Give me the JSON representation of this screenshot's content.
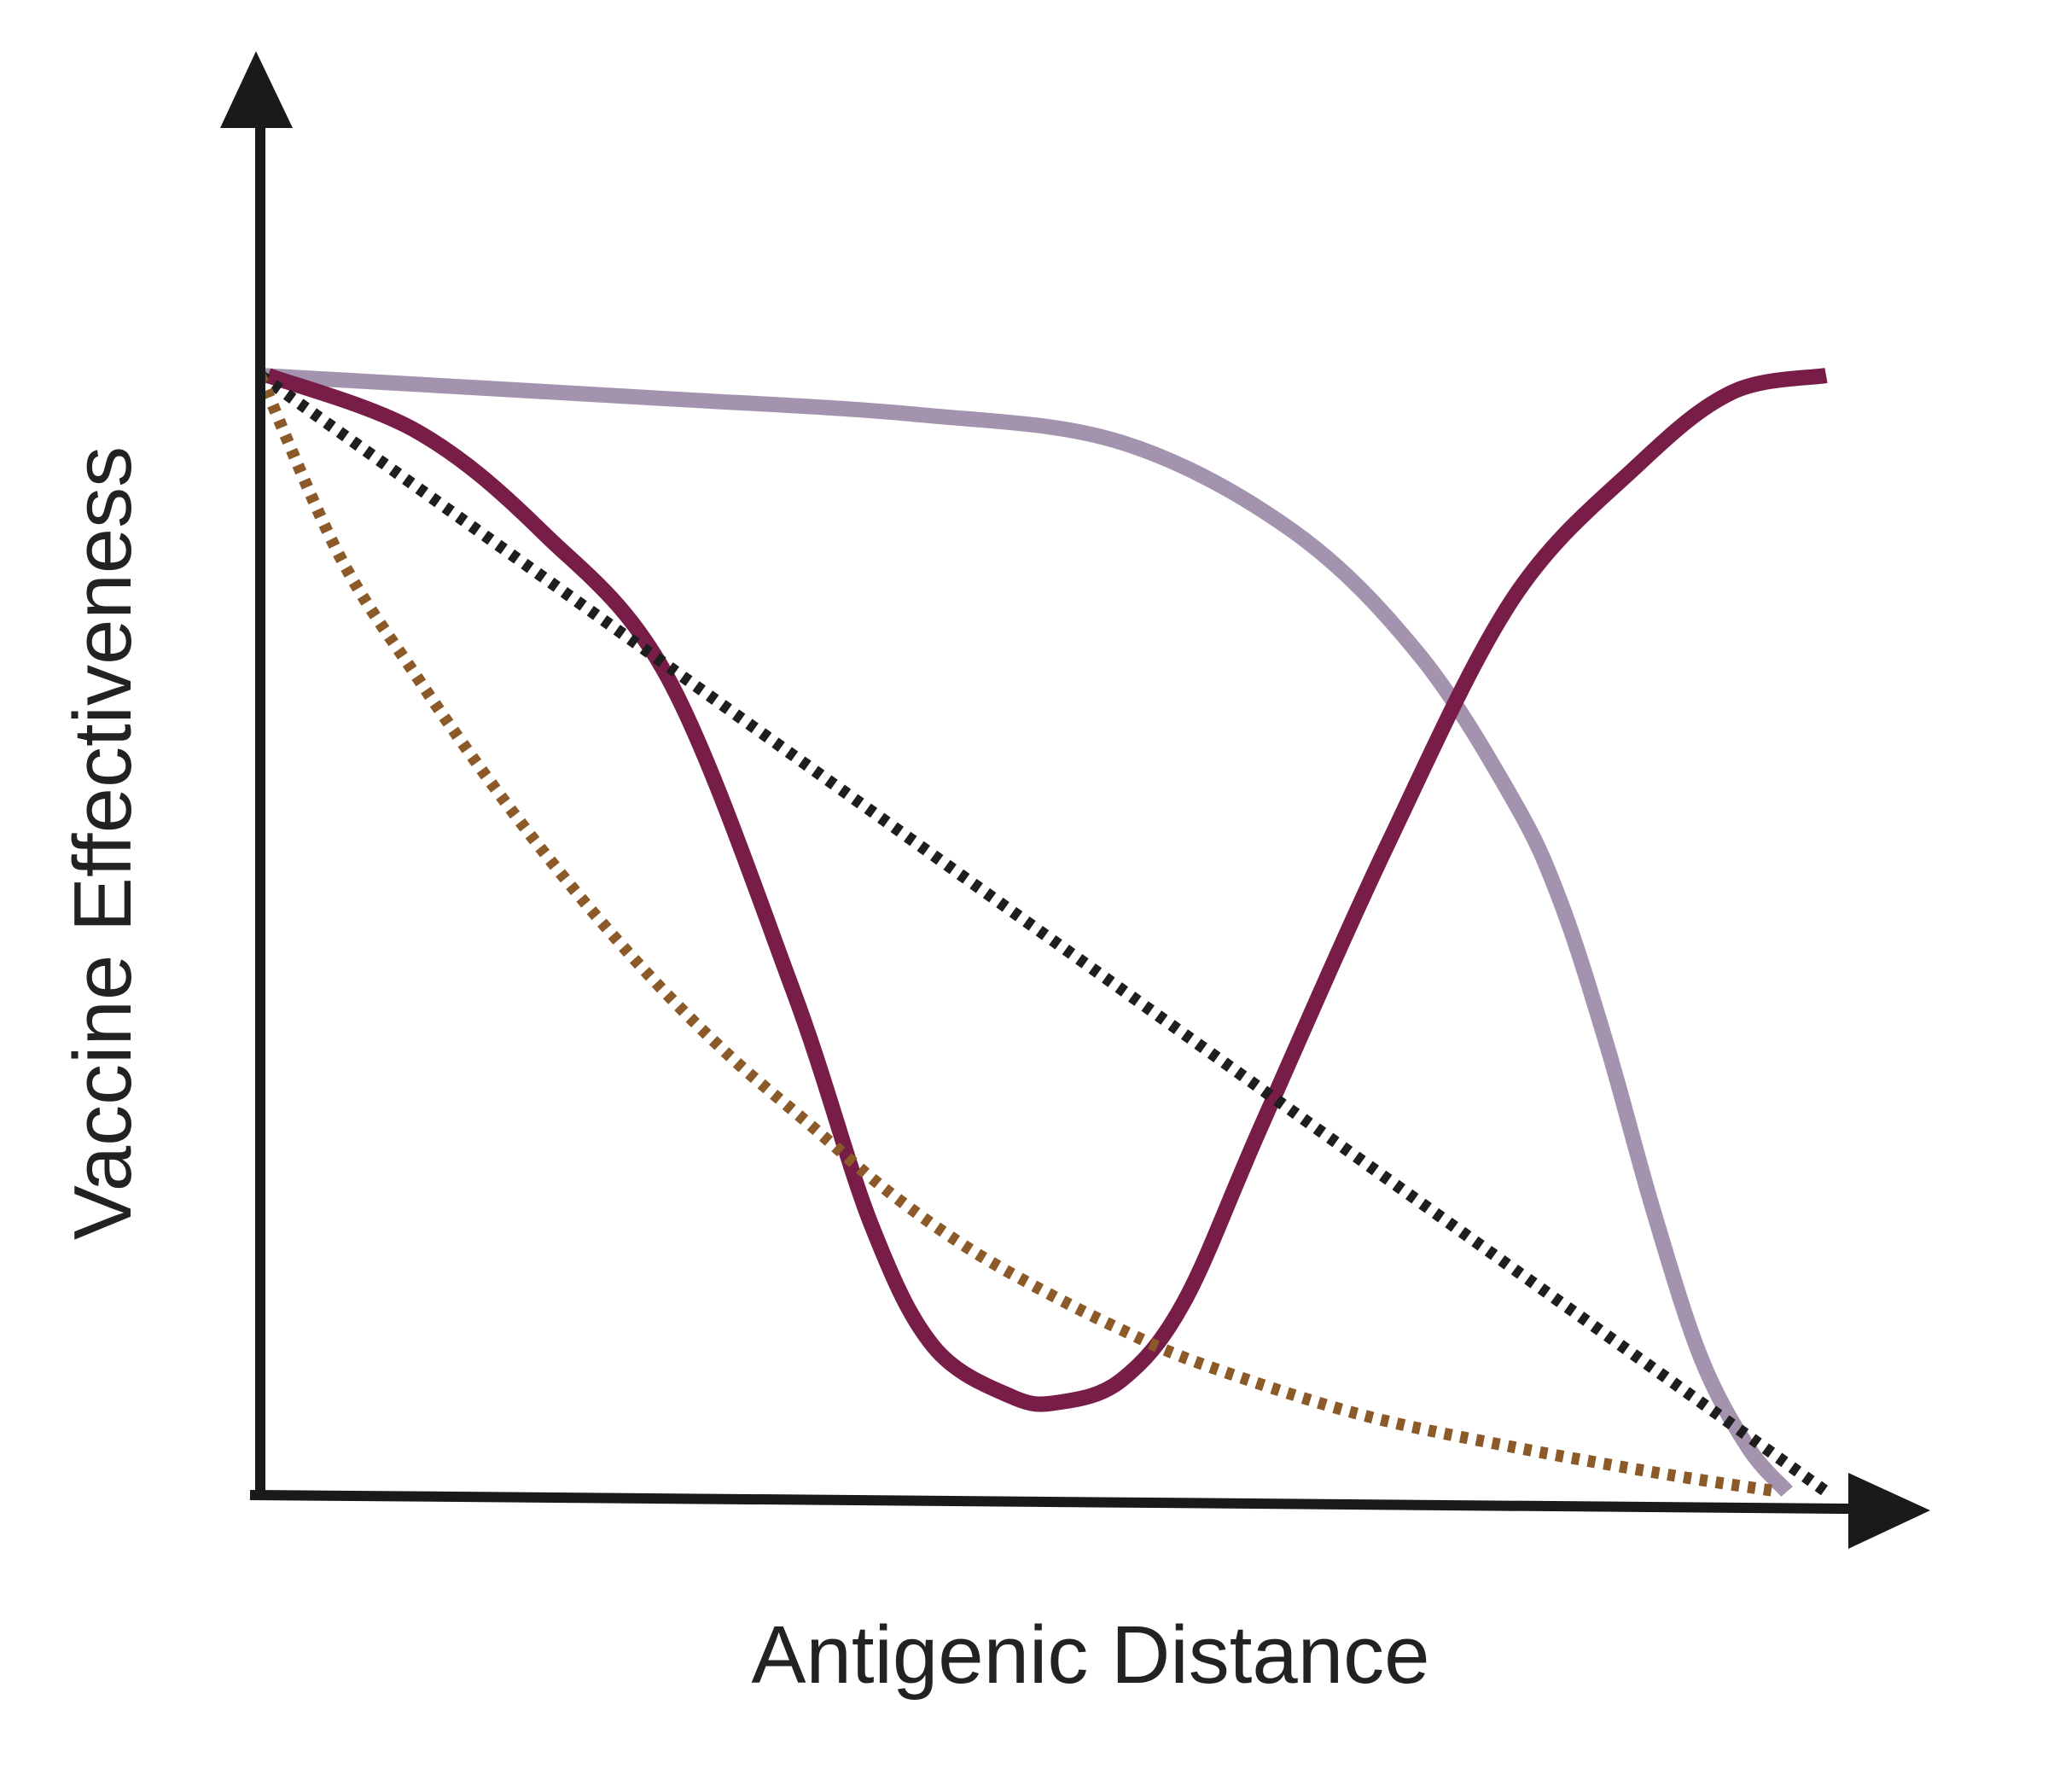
{
  "chart_data": {
    "type": "line",
    "title": "",
    "xlabel": "Antigenic Distance",
    "ylabel": "Vaccine Effectiveness",
    "xlim": [
      0,
      1
    ],
    "ylim": [
      0,
      1
    ],
    "grid": false,
    "legend": "none",
    "series": [
      {
        "style": "solid",
        "color": "#a393ae",
        "x": [
          0,
          0.25,
          0.42,
          0.55,
          0.66,
          0.74,
          0.8,
          0.83,
          0.86,
          0.89,
          0.92,
          0.95,
          0.975
        ],
        "y": [
          1.0,
          0.98,
          0.965,
          0.94,
          0.86,
          0.75,
          0.62,
          0.53,
          0.4,
          0.25,
          0.12,
          0.04,
          0.0
        ]
      },
      {
        "style": "solid",
        "color": "#771d47",
        "x": [
          0.005,
          0.1,
          0.18,
          0.26,
          0.34,
          0.39,
          0.43,
          0.48,
          0.51,
          0.55,
          0.59,
          0.64,
          0.72,
          0.8,
          0.88,
          0.94,
          1.0
        ],
        "y": [
          1.0,
          0.95,
          0.86,
          0.73,
          0.45,
          0.24,
          0.13,
          0.085,
          0.08,
          0.1,
          0.17,
          0.33,
          0.58,
          0.8,
          0.92,
          0.985,
          1.0
        ]
      },
      {
        "style": "dotted",
        "color": "#1e1e1e",
        "x": [
          0,
          1.0
        ],
        "y": [
          1.0,
          0.0
        ]
      },
      {
        "style": "dotted",
        "color": "#8b5a28",
        "x": [
          0,
          0.05,
          0.1,
          0.15,
          0.2,
          0.25,
          0.3,
          0.35,
          0.4,
          0.45,
          0.5,
          0.55,
          0.6,
          0.7,
          0.8,
          0.9,
          0.97
        ],
        "y": [
          1.0,
          0.84,
          0.73,
          0.63,
          0.54,
          0.46,
          0.39,
          0.33,
          0.27,
          0.22,
          0.18,
          0.145,
          0.115,
          0.07,
          0.04,
          0.015,
          0.0
        ]
      }
    ]
  }
}
